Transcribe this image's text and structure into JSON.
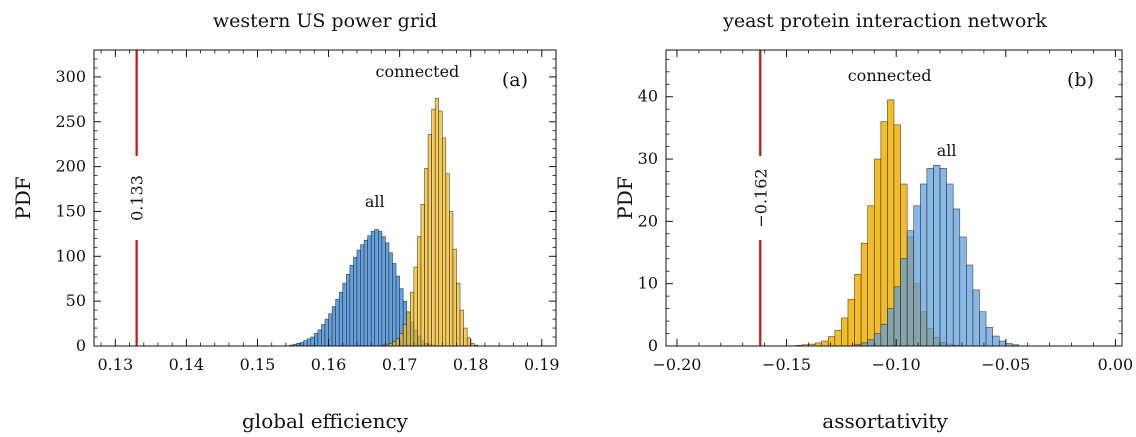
{
  "colors": {
    "all": "#5b9bdc",
    "connected": "#f2b81f",
    "overlap": "#7e9e7a",
    "edge": "#222222",
    "reference_line": "#cc1111"
  },
  "chart_data": [
    {
      "type": "histogram",
      "panel": "(a)",
      "title": "western US power grid",
      "xlabel": "global efficiency",
      "ylabel": "PDF",
      "xlim": [
        0.127,
        0.192
      ],
      "ylim": [
        0,
        330
      ],
      "xticks": [
        0.13,
        0.14,
        0.15,
        0.16,
        0.17,
        0.18,
        0.19
      ],
      "xtick_labels": [
        "0.13",
        "0.14",
        "0.15",
        "0.16",
        "0.17",
        "0.18",
        "0.19"
      ],
      "yticks": [
        0,
        50,
        100,
        150,
        200,
        250,
        300
      ],
      "ytick_labels": [
        "0",
        "50",
        "100",
        "150",
        "200",
        "250",
        "300"
      ],
      "reference": {
        "x": 0.133,
        "label": "0.133"
      },
      "series": [
        {
          "name": "all",
          "label_at": [
            0.1665,
            155
          ],
          "bin_width": 0.0005,
          "bin_start": 0.1545,
          "values": [
            1,
            2,
            3,
            4,
            6,
            8,
            10,
            14,
            18,
            24,
            30,
            36,
            44,
            52,
            60,
            70,
            80,
            90,
            99,
            107,
            113,
            118,
            123,
            128,
            130,
            128,
            122,
            115,
            104,
            92,
            78,
            64,
            50,
            38,
            27,
            18,
            11,
            6,
            3,
            2,
            1
          ]
        },
        {
          "name": "connected",
          "label_at": [
            0.1725,
            300
          ],
          "bin_width": 0.0005,
          "bin_start": 0.1675,
          "values": [
            1,
            2,
            3,
            5,
            8,
            14,
            24,
            38,
            60,
            88,
            122,
            158,
            198,
            236,
            264,
            276,
            262,
            232,
            192,
            150,
            108,
            70,
            40,
            20,
            9,
            3,
            1
          ]
        }
      ]
    },
    {
      "type": "histogram",
      "panel": "(b)",
      "title": "yeast protein interaction network",
      "xlabel": "assortativity",
      "ylabel": "PDF",
      "xlim": [
        -0.205,
        0.003
      ],
      "ylim": [
        0,
        47.5
      ],
      "xticks": [
        -0.2,
        -0.15,
        -0.1,
        -0.05,
        0.0
      ],
      "xtick_labels": [
        "−0.20",
        "−0.15",
        "−0.10",
        "−0.05",
        "0.00"
      ],
      "yticks": [
        0,
        10,
        20,
        30,
        40
      ],
      "ytick_labels": [
        "0",
        "10",
        "20",
        "30",
        "40"
      ],
      "reference": {
        "x": -0.162,
        "label": "−0.162"
      },
      "series": [
        {
          "name": "connected",
          "label_at": [
            -0.103,
            42.5
          ],
          "bin_width": 0.003,
          "bin_start": -0.146,
          "values": [
            0.1,
            0.2,
            0.3,
            0.5,
            0.8,
            1.5,
            2.5,
            4.5,
            7.5,
            11.5,
            16.5,
            22.5,
            30,
            36,
            39.5,
            35.5,
            26,
            17.5,
            10,
            5.5,
            2.8,
            1.4,
            0.6,
            0.3,
            0.1
          ]
        },
        {
          "name": "all",
          "label_at": [
            -0.077,
            30.5
          ],
          "bin_width": 0.003,
          "bin_start": -0.119,
          "values": [
            0.2,
            0.5,
            1,
            2,
            3.5,
            6,
            9.5,
            14,
            18.5,
            22.5,
            26,
            28.5,
            29,
            28.5,
            26,
            22,
            17.5,
            13,
            9,
            5.5,
            3,
            1.6,
            0.8,
            0.4,
            0.2
          ]
        }
      ]
    }
  ]
}
